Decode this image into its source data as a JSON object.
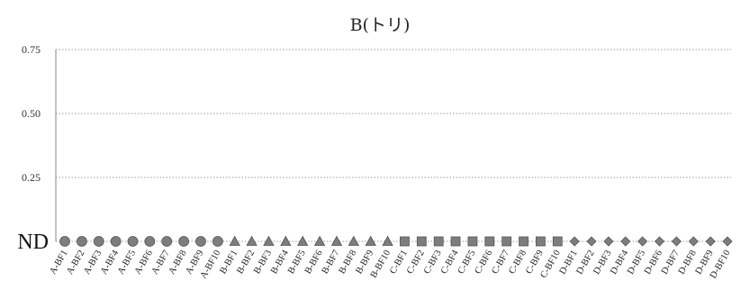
{
  "chart_data": {
    "type": "scatter",
    "title": "B(トリ)",
    "xlabel": "",
    "ylabel": "",
    "ylim": [
      0,
      0.75
    ],
    "yticks": [
      {
        "value": 0,
        "label": "ND"
      },
      {
        "value": 0.25,
        "label": "0.25"
      },
      {
        "value": 0.5,
        "label": "0.50"
      },
      {
        "value": 0.75,
        "label": "0.75"
      }
    ],
    "grid": true,
    "categories": [
      "A-BF1",
      "A-BF2",
      "A-BF3",
      "A-BF4",
      "A-BF5",
      "A-BF6",
      "A-BF7",
      "A-BF8",
      "A-BF9",
      "A-BF10",
      "B-BF1",
      "B-BF2",
      "B-BF3",
      "B-BF4",
      "B-BF5",
      "B-BF6",
      "B-BF7",
      "B-BF8",
      "B-BF9",
      "B-BF10",
      "C-BF1",
      "C-BF2",
      "C-BF3",
      "C-BF4",
      "C-BF5",
      "C-BF6",
      "C-BF7",
      "C-BF8",
      "C-BF9",
      "C-BF10",
      "D-BF1",
      "D-BF2",
      "D-BF3",
      "D-BF4",
      "D-BF5",
      "D-BF6",
      "D-BF7",
      "D-BF8",
      "D-BF9",
      "D-BF10"
    ],
    "series": [
      {
        "marker": "circle",
        "color": "#7d7d7d",
        "start": 0,
        "values": [
          0,
          0,
          0,
          0,
          0,
          0,
          0,
          0,
          0,
          0
        ]
      },
      {
        "marker": "triangle",
        "color": "#7d7d7d",
        "start": 10,
        "values": [
          0,
          0,
          0,
          0,
          0,
          0,
          0,
          0,
          0,
          0
        ]
      },
      {
        "marker": "square",
        "color": "#7d7d7d",
        "start": 20,
        "values": [
          0,
          0,
          0,
          0,
          0,
          0,
          0,
          0,
          0,
          0
        ]
      },
      {
        "marker": "diamond",
        "color": "#7d7d7d",
        "start": 30,
        "values": [
          0,
          0,
          0,
          0,
          0,
          0,
          0,
          0,
          0,
          0
        ]
      }
    ]
  }
}
